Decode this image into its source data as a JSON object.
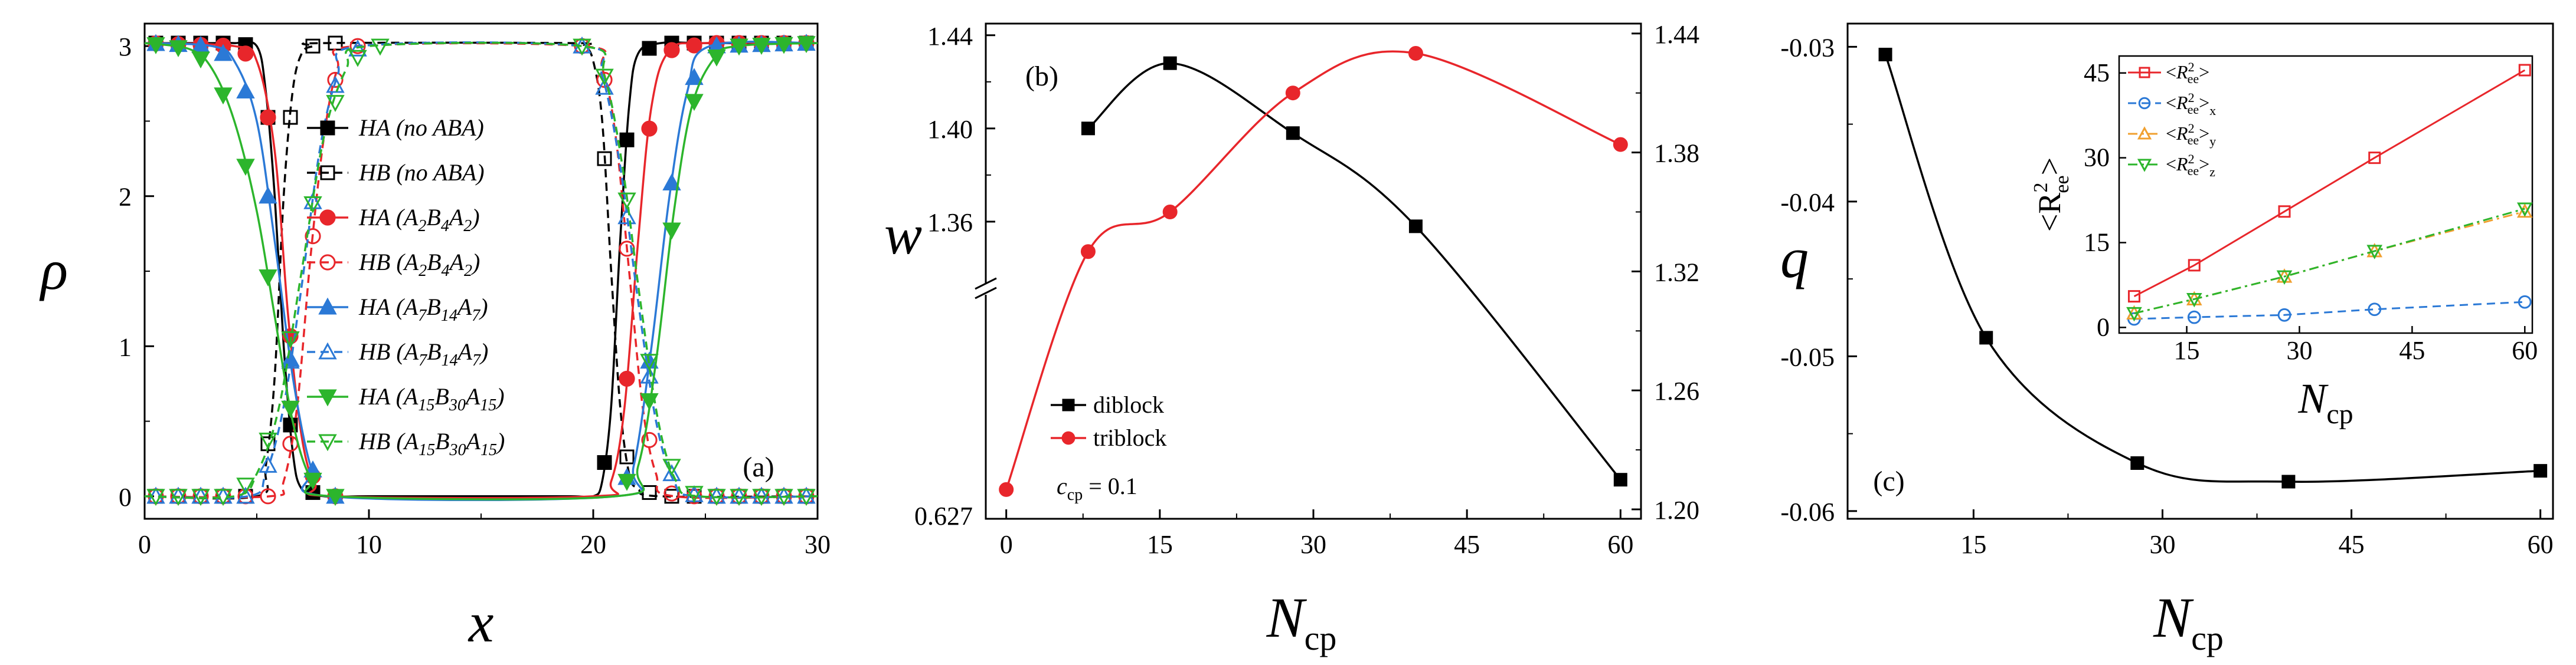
{
  "chart_data": [
    {
      "type": "line",
      "panel_label": "(a)",
      "xlabel": "x",
      "ylabel": "ρ",
      "xlim": [
        0,
        30
      ],
      "ylim": [
        -0.15,
        3.15
      ],
      "xticks": [
        0,
        10,
        20,
        30
      ],
      "yticks": [
        0,
        1,
        2,
        3
      ],
      "legend_position": "center",
      "series": [
        {
          "name": "HA (no ABA)",
          "color": "#000000",
          "dash": false,
          "marker": "square-filled",
          "x": [
            0,
            1,
            2,
            3,
            4,
            5,
            5.4,
            5.8,
            6.2,
            6.6,
            7,
            8,
            10,
            15,
            19,
            20,
            20.4,
            20.8,
            21.2,
            21.6,
            22,
            23,
            25,
            30
          ],
          "y": [
            3.02,
            3.02,
            3.02,
            3.02,
            3.02,
            3.0,
            2.7,
            2.0,
            1.0,
            0.3,
            0.05,
            0,
            0,
            0,
            0,
            0,
            0.1,
            0.6,
            1.7,
            2.6,
            2.95,
            3.02,
            3.02,
            3.02
          ],
          "marker_x": [
            0.5,
            1.5,
            2.5,
            3.5,
            4.5,
            5.5,
            6.5,
            7.5,
            20.5,
            21.5,
            22.5,
            23.5,
            24.5,
            25.5,
            26.5,
            27.5,
            28.5,
            29.5
          ]
        },
        {
          "name": "HB (no ABA)",
          "color": "#000000",
          "dash": true,
          "marker": "square-open",
          "x": [
            0,
            5,
            5.4,
            5.8,
            6.2,
            6.6,
            7,
            7.5,
            8,
            19,
            19.6,
            20,
            20.4,
            20.8,
            21.2,
            21.6,
            22,
            23,
            30
          ],
          "y": [
            0,
            0,
            0.2,
            0.8,
            2.0,
            2.7,
            2.95,
            3.0,
            3.02,
            3.02,
            3.0,
            2.9,
            2.5,
            1.5,
            0.6,
            0.15,
            0.05,
            0,
            0
          ],
          "marker_x": [
            0.5,
            1.5,
            2.5,
            3.5,
            4.5,
            5.5,
            6.5,
            7.5,
            8.5,
            20.5,
            21.5,
            22.5,
            23.5,
            24.5,
            25.5,
            26.5,
            27.5,
            28.5,
            29.5
          ]
        },
        {
          "name": "HA (A2B4A2)",
          "color": "#e8262b",
          "dash": false,
          "marker": "circle-filled",
          "x": [
            0,
            4,
            5,
            5.8,
            6.4,
            7,
            7.6,
            8.4,
            20,
            20.8,
            21.4,
            22,
            22.6,
            23.4,
            25,
            30
          ],
          "y": [
            3.02,
            3.0,
            2.9,
            2.3,
            1.2,
            0.4,
            0.08,
            0,
            0,
            0.1,
            0.6,
            1.7,
            2.6,
            2.97,
            3.02,
            3.02
          ],
          "marker_x": [
            0.5,
            1.5,
            2.5,
            3.5,
            4.5,
            5.5,
            6.5,
            7.5,
            8.5,
            21.5,
            22.5,
            23.5,
            24.5,
            25.5,
            26.5,
            27.5,
            28.5,
            29.5
          ]
        },
        {
          "name": "HB (A2B4A2)",
          "color": "#e8262b",
          "dash": true,
          "marker": "circle-open",
          "x": [
            0,
            5.6,
            6.2,
            6.8,
            7.4,
            8,
            8.6,
            9.4,
            19.5,
            20.4,
            21,
            21.6,
            22.2,
            22.8,
            23.6,
            30
          ],
          "y": [
            0,
            0,
            0.1,
            0.6,
            1.6,
            2.4,
            2.85,
            3.0,
            3.0,
            2.85,
            2.4,
            1.5,
            0.6,
            0.15,
            0,
            0
          ],
          "marker_x": [
            0.5,
            1.5,
            2.5,
            3.5,
            4.5,
            5.5,
            6.5,
            7.5,
            8.5,
            9.5,
            19.5,
            20.5,
            21.5,
            22.5,
            23.5,
            24.5,
            25.5,
            26.5,
            27.5,
            28.5,
            29.5
          ]
        },
        {
          "name": "HA (A7B14A7)",
          "color": "#2b79d6",
          "dash": false,
          "marker": "triangle-filled",
          "x": [
            0,
            3,
            4,
            5,
            5.8,
            6.6,
            7.4,
            8.2,
            21,
            21.8,
            22.6,
            23.4,
            24.2,
            25.2,
            30
          ],
          "y": [
            3.02,
            3.0,
            2.9,
            2.5,
            1.7,
            0.8,
            0.2,
            0,
            0,
            0.2,
            1.0,
            2.0,
            2.7,
            3.0,
            3.02
          ],
          "marker_x": [
            0.5,
            1.5,
            2.5,
            3.5,
            4.5,
            5.5,
            6.5,
            7.5,
            8.5,
            21.5,
            22.5,
            23.5,
            24.5,
            25.5,
            26.5,
            27.5,
            28.5,
            29.5
          ]
        },
        {
          "name": "HB (A7B14A7)",
          "color": "#2b79d6",
          "dash": true,
          "marker": "triangle-open",
          "x": [
            0,
            4.6,
            5.4,
            6.2,
            7,
            7.8,
            8.6,
            9.6,
            19.5,
            20.4,
            21.2,
            22,
            22.8,
            23.6,
            24.6,
            30
          ],
          "y": [
            0,
            0,
            0.15,
            0.6,
            1.4,
            2.3,
            2.8,
            3.0,
            3.0,
            2.8,
            2.2,
            1.3,
            0.5,
            0.1,
            0,
            0
          ],
          "marker_x": [
            0.5,
            1.5,
            2.5,
            3.5,
            4.5,
            5.5,
            6.5,
            7.5,
            8.5,
            9.5,
            19.5,
            20.5,
            21.5,
            22.5,
            23.5,
            24.5,
            25.5,
            26.5,
            27.5,
            28.5,
            29.5
          ]
        },
        {
          "name": "HA (A15B30A15)",
          "color": "#2cb52c",
          "dash": false,
          "marker": "triangle-down-filled",
          "x": [
            0,
            2,
            3,
            4,
            5,
            5.8,
            6.6,
            7.4,
            8.4,
            21,
            22,
            22.8,
            23.6,
            24.4,
            25.4,
            26.4,
            30
          ],
          "y": [
            3.02,
            2.98,
            2.85,
            2.5,
            1.9,
            1.2,
            0.5,
            0.12,
            0,
            0,
            0.2,
            0.9,
            1.9,
            2.6,
            2.92,
            3.0,
            3.02
          ],
          "marker_x": [
            0.5,
            1.5,
            2.5,
            3.5,
            4.5,
            5.5,
            6.5,
            7.5,
            8.5,
            21.5,
            22.5,
            23.5,
            24.5,
            25.5,
            26.5,
            27.5,
            28.5,
            29.5
          ]
        },
        {
          "name": "HB (A15B30A15)",
          "color": "#2cb52c",
          "dash": true,
          "marker": "triangle-down-open",
          "x": [
            0,
            4,
            5,
            6,
            7,
            8,
            9,
            10,
            19.5,
            20.5,
            21.3,
            22.1,
            22.9,
            23.7,
            24.7,
            30
          ],
          "y": [
            0,
            0,
            0.15,
            0.6,
            1.5,
            2.4,
            2.85,
            3.0,
            3.0,
            2.8,
            2.2,
            1.3,
            0.5,
            0.1,
            0,
            0
          ],
          "marker_x": [
            0.5,
            1.5,
            2.5,
            3.5,
            4.5,
            5.5,
            6.5,
            7.5,
            8.5,
            9.5,
            10.5,
            19.5,
            20.5,
            21.5,
            22.5,
            23.5,
            24.5,
            25.5,
            26.5,
            27.5,
            28.5,
            29.5
          ]
        }
      ],
      "legend_text": [
        {
          "main": "HA",
          "rest": " (no ABA)"
        },
        {
          "main": "HB",
          "rest": " (no ABA)"
        },
        {
          "main": "HA",
          "p1": " (A",
          "s1": "2",
          "p2": "B",
          "s2": "4",
          "p3": "A",
          "s3": "2",
          "p4": ")"
        },
        {
          "main": "HB",
          "p1": " (A",
          "s1": "2",
          "p2": "B",
          "s2": "4",
          "p3": "A",
          "s3": "2",
          "p4": ")"
        },
        {
          "main": "HA",
          "p1": " (A",
          "s1": "7",
          "p2": "B",
          "s2": "14",
          "p3": "A",
          "s3": "7",
          "p4": ")"
        },
        {
          "main": "HB",
          "p1": " (A",
          "s1": "7",
          "p2": "B",
          "s2": "14",
          "p3": "A",
          "s3": "7",
          "p4": ")"
        },
        {
          "main": "HA",
          "p1": " (A",
          "s1": "15",
          "p2": "B",
          "s2": "30",
          "p3": "A",
          "s3": "15",
          "p4": ")"
        },
        {
          "main": "HB",
          "p1": " (A",
          "s1": "15",
          "p2": "B",
          "s2": "30",
          "p3": "A",
          "s3": "15",
          "p4": ")"
        }
      ]
    },
    {
      "type": "line",
      "panel_label": "(b)",
      "xlabel": "N",
      "xlabel_sub": "cp",
      "ylabel": "w",
      "xticks": [
        0,
        15,
        30,
        45,
        60
      ],
      "xlim": [
        -2,
        62
      ],
      "left_axis_ticks": [
        "1.44",
        "1.40",
        "1.36",
        "0.627"
      ],
      "right_axis_ticks": [
        "1.44",
        "1.38",
        "1.32",
        "1.26",
        "1.20"
      ],
      "right_ylim": [
        1.2,
        1.44
      ],
      "axis_break": true,
      "annotation": {
        "c": "c",
        "sub": "cp",
        "rest": " = 0.1"
      },
      "legend_position": "lower-left",
      "series": [
        {
          "name": "diblock",
          "color": "#000000",
          "marker": "square-filled",
          "axis": "left",
          "x": [
            8,
            16,
            28,
            40,
            60
          ],
          "y": [
            1.4,
            1.428,
            1.398,
            1.358,
            1.216
          ]
        },
        {
          "name": "triblock",
          "color": "#e8262b",
          "marker": "circle-filled",
          "axis": "right",
          "x": [
            0,
            8,
            16,
            28,
            40,
            60
          ],
          "y": [
            1.21,
            1.33,
            1.35,
            1.41,
            1.43,
            1.384
          ]
        }
      ]
    },
    {
      "type": "line",
      "panel_label": "(c)",
      "xlabel": "N",
      "xlabel_sub": "cp",
      "ylabel": "q",
      "xlim": [
        5,
        61
      ],
      "ylim": [
        -0.0605,
        -0.0285
      ],
      "xticks": [
        15,
        30,
        45,
        60
      ],
      "yticks": [
        "-0.03",
        "-0.04",
        "-0.05",
        "-0.06"
      ],
      "series": [
        {
          "name": "",
          "color": "#000000",
          "marker": "square-filled",
          "x": [
            8,
            16,
            28,
            40,
            60
          ],
          "y": [
            -0.0305,
            -0.0488,
            -0.0569,
            -0.0581,
            -0.0574
          ]
        }
      ],
      "inset": {
        "type": "line",
        "xlabel": "N",
        "xlabel_sub": "cp",
        "ylabel": "<R2ee>",
        "xlim": [
          6,
          61
        ],
        "ylim": [
          -1,
          48
        ],
        "xticks": [
          15,
          30,
          45,
          60
        ],
        "yticks": [
          0,
          15,
          30,
          45
        ],
        "legend_position": "top-left",
        "series": [
          {
            "name": "<R2ee>",
            "sub_extra": "",
            "color": "#e8262b",
            "dash": "none",
            "marker": "square-open",
            "x": [
              8,
              16,
              28,
              40,
              60
            ],
            "y": [
              5.5,
              11,
              20.5,
              30,
              45.5
            ]
          },
          {
            "name": "<R2ee>x",
            "sub_extra": "x",
            "color": "#2b79d6",
            "dash": "dash",
            "marker": "circle-open",
            "x": [
              8,
              16,
              28,
              40,
              60
            ],
            "y": [
              1.5,
              1.8,
              2.2,
              3.2,
              4.5
            ]
          },
          {
            "name": "<R2ee>y",
            "sub_extra": "y",
            "color": "#f0a030",
            "dash": "dashdot",
            "marker": "triangle-open",
            "x": [
              8,
              16,
              28,
              40,
              60
            ],
            "y": [
              2.5,
              5.0,
              9.0,
              13.5,
              20.5
            ]
          },
          {
            "name": "<R2ee>z",
            "sub_extra": "z",
            "color": "#2cb52c",
            "dash": "dashdot",
            "marker": "triangle-down-open",
            "x": [
              8,
              16,
              28,
              40,
              60
            ],
            "y": [
              2.5,
              5.0,
              9.0,
              13.5,
              21.0
            ]
          }
        ]
      }
    }
  ]
}
